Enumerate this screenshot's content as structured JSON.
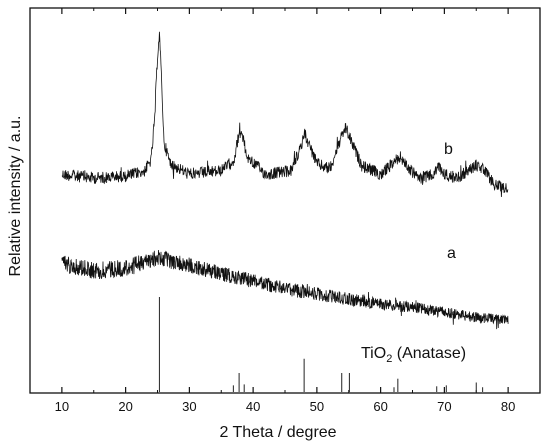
{
  "chart_data": {
    "type": "line",
    "xlabel": "2 Theta / degree",
    "ylabel": "Relative intensity  / a.u.",
    "x_range": [
      5,
      85
    ],
    "x_ticks": [
      10,
      20,
      30,
      40,
      50,
      60,
      70,
      80
    ],
    "grid": false,
    "series": [
      {
        "name": "b",
        "x": [
          10,
          15,
          20,
          23,
          24,
          24.5,
          25,
          25.3,
          25.7,
          26,
          27,
          30,
          35,
          37,
          37.8,
          38.2,
          39,
          42,
          46,
          47.6,
          48,
          48.6,
          50,
          52,
          53.8,
          54.5,
          55.2,
          57,
          60,
          62.5,
          63,
          64.5,
          66,
          68.5,
          69,
          70,
          72,
          75,
          76,
          78,
          80
        ],
        "y": [
          0.22,
          0.2,
          0.21,
          0.24,
          0.3,
          0.5,
          0.88,
          1.0,
          0.7,
          0.4,
          0.28,
          0.22,
          0.24,
          0.3,
          0.45,
          0.46,
          0.32,
          0.22,
          0.24,
          0.38,
          0.46,
          0.4,
          0.28,
          0.25,
          0.42,
          0.48,
          0.42,
          0.27,
          0.22,
          0.3,
          0.32,
          0.25,
          0.2,
          0.22,
          0.27,
          0.22,
          0.2,
          0.27,
          0.25,
          0.16,
          0.14
        ]
      },
      {
        "name": "a",
        "x": [
          10,
          15,
          20,
          25,
          30,
          35,
          40,
          45,
          50,
          55,
          60,
          65,
          70,
          75,
          80
        ],
        "y": [
          0.42,
          0.39,
          0.4,
          0.44,
          0.41,
          0.38,
          0.35,
          0.32,
          0.3,
          0.28,
          0.26,
          0.25,
          0.23,
          0.21,
          0.2
        ]
      }
    ],
    "reference": {
      "name": "TiO2 (Anatase)",
      "label_main": "TiO",
      "label_sub": "2",
      "label_rest": " (Anatase)",
      "x": [
        25.3,
        36.9,
        37.8,
        38.6,
        48.0,
        53.9,
        55.1,
        62.1,
        62.7,
        68.8,
        70.3,
        75.0,
        76.0
      ],
      "y": [
        1.0,
        0.07,
        0.2,
        0.08,
        0.35,
        0.2,
        0.2,
        0.05,
        0.14,
        0.06,
        0.07,
        0.1,
        0.05
      ]
    },
    "curve_labels": {
      "b": "b",
      "a": "a"
    }
  }
}
